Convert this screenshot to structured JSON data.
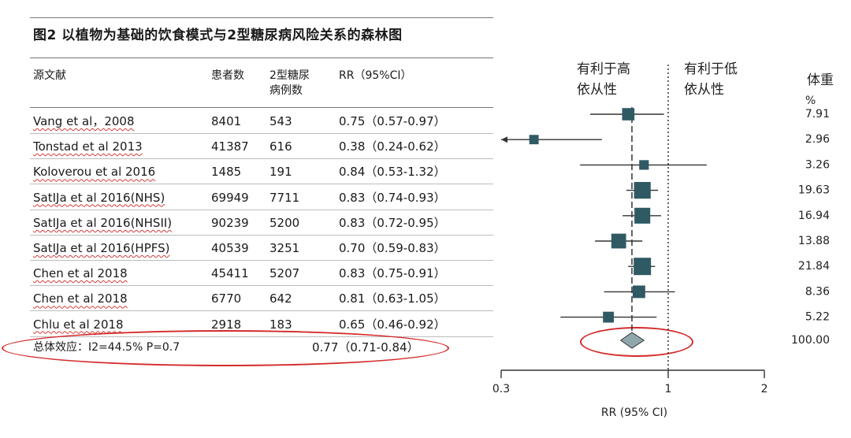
{
  "title": "图2 以植物为基础的饮食模式与2型糖尿病风险关系的森林图",
  "table": {
    "headers": {
      "source": "源文献",
      "patients": "患者数",
      "cases": [
        "2型糖尿",
        "病例数"
      ],
      "rr": "RR（95%CI）"
    },
    "rows": [
      {
        "source": "Vang et al，2008",
        "patients": "8401",
        "cases": "543",
        "rr": "0.75（0.57-0.97）"
      },
      {
        "source": "Tonstad et al 2013",
        "patients": "41387",
        "cases": "616",
        "rr": "0.38（0.24-0.62）"
      },
      {
        "source": "Koloverou et al 2016",
        "patients": "1485",
        "cases": "191",
        "rr": "0.84（0.53-1.32）"
      },
      {
        "source": "SatIJa et al 2016(NHS)",
        "patients": "69949",
        "cases": "7711",
        "rr": "0.83（0.74-0.93）"
      },
      {
        "source": "SatIJa et al 2016(NHSII)",
        "patients": "90239",
        "cases": "5200",
        "rr": "0.83（0.72-0.95）"
      },
      {
        "source": "SatIJa et al 2016(HPFS)",
        "patients": "40539",
        "cases": "3251",
        "rr": "0.70（0.59-0.83）"
      },
      {
        "source": "Chen et al 2018",
        "patients": "45411",
        "cases": "5207",
        "rr": "0.83（0.75-0.91）"
      },
      {
        "source": "Chen et al 2018",
        "patients": "6770",
        "cases": "642",
        "rr": "0.81（0.63-1.05）"
      },
      {
        "source": "Chlu et al 2018",
        "patients": "2918",
        "cases": "183",
        "rr": "0.65（0.46-0.92）"
      }
    ],
    "overall": {
      "label": "总体效应：I2=44.5%   P=0.7",
      "rr": "0.77（0.71-0.84）"
    }
  },
  "chart_data": {
    "type": "forest",
    "xlabel": "RR (95% CI)",
    "xscale": "log",
    "xlim": [
      0.3,
      2
    ],
    "xticks": [
      "0.3",
      "1",
      "2"
    ],
    "reference_line": 1,
    "pooled_line": 0.77,
    "zones": {
      "left": [
        "有利于高",
        "依从性"
      ],
      "right": [
        "有利于低",
        "依从性"
      ]
    },
    "weight_header": "体重",
    "weight_unit": "%",
    "studies": [
      {
        "rr": 0.75,
        "lo": 0.57,
        "hi": 0.97,
        "weight": "7.91"
      },
      {
        "rr": 0.38,
        "lo": 0.24,
        "hi": 0.62,
        "weight": "2.96"
      },
      {
        "rr": 0.84,
        "lo": 0.53,
        "hi": 1.32,
        "weight": "3.26"
      },
      {
        "rr": 0.83,
        "lo": 0.74,
        "hi": 0.93,
        "weight": "19.63"
      },
      {
        "rr": 0.83,
        "lo": 0.72,
        "hi": 0.95,
        "weight": "16.94"
      },
      {
        "rr": 0.7,
        "lo": 0.59,
        "hi": 0.83,
        "weight": "13.88"
      },
      {
        "rr": 0.83,
        "lo": 0.75,
        "hi": 0.91,
        "weight": "21.84"
      },
      {
        "rr": 0.81,
        "lo": 0.63,
        "hi": 1.05,
        "weight": "8.36"
      },
      {
        "rr": 0.65,
        "lo": 0.46,
        "hi": 0.92,
        "weight": "5.22"
      }
    ],
    "overall": {
      "rr": 0.77,
      "lo": 0.71,
      "hi": 0.84,
      "weight": "100.00"
    },
    "colors": {
      "marker": "#2f5a64",
      "diamond": "#8fa7aa",
      "highlight": "#d42a2a"
    }
  }
}
